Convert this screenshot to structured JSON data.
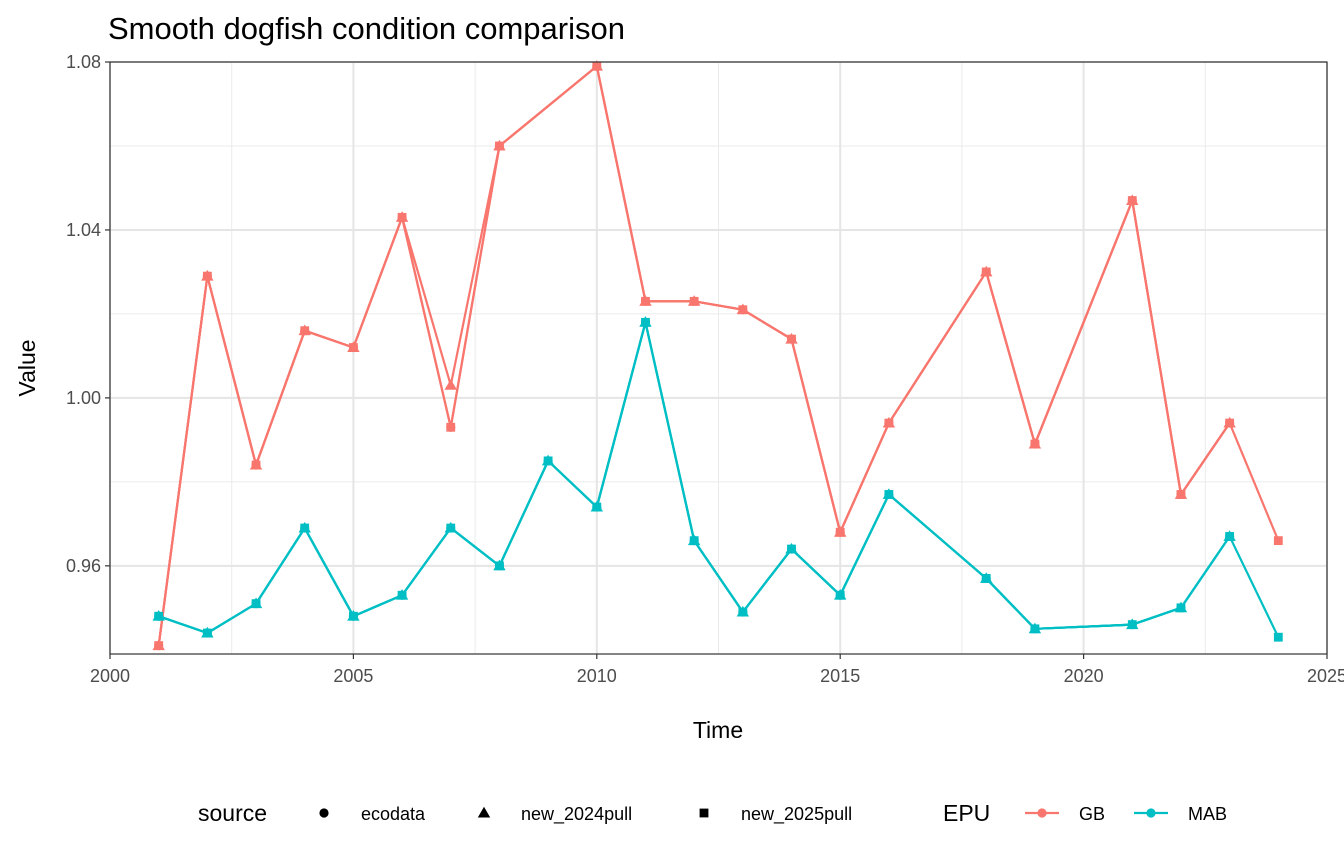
{
  "chart_data": {
    "type": "line",
    "title": "Smooth dogfish condition comparison",
    "xlabel": "Time",
    "ylabel": "Value",
    "xlim": [
      2000,
      2025
    ],
    "ylim": [
      0.939,
      1.08
    ],
    "x_ticks": [
      2000,
      2005,
      2010,
      2015,
      2020,
      2025
    ],
    "x_tick_labels": [
      "2000",
      "2005",
      "2010",
      "2015",
      "2020",
      "2025"
    ],
    "y_ticks": [
      0.96,
      1.0,
      1.04,
      1.08
    ],
    "y_tick_labels": [
      "0.96",
      "1.00",
      "1.04",
      "1.08"
    ],
    "grid": true,
    "legend_position": "bottom",
    "legends": {
      "shape_title": "source",
      "shape_entries": [
        {
          "label": "ecodata",
          "shape": "circle"
        },
        {
          "label": "new_2024pull",
          "shape": "triangle"
        },
        {
          "label": "new_2025pull",
          "shape": "square"
        }
      ],
      "color_title": "EPU",
      "color_entries": [
        {
          "label": "GB",
          "color": "#F8766D"
        },
        {
          "label": "MAB",
          "color": "#00BFC4"
        }
      ]
    },
    "series": [
      {
        "name": "GB",
        "color": "#F8766D",
        "sources": [
          {
            "source": "ecodata",
            "x": [
              2001,
              2002,
              2003,
              2004,
              2005,
              2006,
              2007,
              2008,
              2010,
              2011,
              2012,
              2013,
              2014,
              2015,
              2016,
              2018,
              2019,
              2021,
              2022,
              2023
            ],
            "values": [
              0.941,
              1.029,
              0.984,
              1.016,
              1.012,
              1.043,
              0.993,
              1.06,
              1.079,
              1.023,
              1.023,
              1.021,
              1.014,
              0.968,
              0.994,
              1.03,
              0.989,
              1.047,
              0.977,
              0.994
            ]
          },
          {
            "source": "new_2024pull",
            "x": [
              2001,
              2002,
              2003,
              2004,
              2005,
              2006,
              2007,
              2008,
              2010,
              2011,
              2012,
              2013,
              2014,
              2015,
              2016,
              2018,
              2019,
              2021,
              2022,
              2023
            ],
            "values": [
              0.941,
              1.029,
              0.984,
              1.016,
              1.012,
              1.043,
              1.003,
              1.06,
              1.079,
              1.023,
              1.023,
              1.021,
              1.014,
              0.968,
              0.994,
              1.03,
              0.989,
              1.047,
              0.977,
              0.994
            ]
          },
          {
            "source": "new_2025pull",
            "x": [
              2001,
              2002,
              2003,
              2004,
              2005,
              2006,
              2007,
              2008,
              2010,
              2011,
              2012,
              2013,
              2014,
              2015,
              2016,
              2018,
              2019,
              2021,
              2022,
              2023,
              2024
            ],
            "values": [
              0.941,
              1.029,
              0.984,
              1.016,
              1.012,
              1.043,
              0.993,
              1.06,
              1.079,
              1.023,
              1.023,
              1.021,
              1.014,
              0.968,
              0.994,
              1.03,
              0.989,
              1.047,
              0.977,
              0.994,
              0.966
            ]
          }
        ]
      },
      {
        "name": "MAB",
        "color": "#00BFC4",
        "sources": [
          {
            "source": "ecodata",
            "x": [
              2001,
              2002,
              2003,
              2004,
              2005,
              2006,
              2007,
              2008,
              2009,
              2010,
              2011,
              2012,
              2013,
              2014,
              2015,
              2016,
              2018,
              2019,
              2021,
              2022,
              2023
            ],
            "values": [
              0.948,
              0.944,
              0.951,
              0.969,
              0.948,
              0.953,
              0.969,
              0.96,
              0.985,
              0.974,
              1.018,
              0.966,
              0.949,
              0.964,
              0.953,
              0.977,
              0.957,
              0.945,
              0.946,
              0.95,
              0.967
            ]
          },
          {
            "source": "new_2024pull",
            "x": [
              2001,
              2002,
              2003,
              2004,
              2005,
              2006,
              2007,
              2008,
              2009,
              2010,
              2011,
              2012,
              2013,
              2014,
              2015,
              2016,
              2018,
              2019,
              2021,
              2022,
              2023
            ],
            "values": [
              0.948,
              0.944,
              0.951,
              0.969,
              0.948,
              0.953,
              0.969,
              0.96,
              0.985,
              0.974,
              1.018,
              0.966,
              0.949,
              0.964,
              0.953,
              0.977,
              0.957,
              0.945,
              0.946,
              0.95,
              0.967
            ]
          },
          {
            "source": "new_2025pull",
            "x": [
              2001,
              2002,
              2003,
              2004,
              2005,
              2006,
              2007,
              2008,
              2009,
              2010,
              2011,
              2012,
              2013,
              2014,
              2015,
              2016,
              2018,
              2019,
              2021,
              2022,
              2023,
              2024
            ],
            "values": [
              0.948,
              0.944,
              0.951,
              0.969,
              0.948,
              0.953,
              0.969,
              0.96,
              0.985,
              0.974,
              1.018,
              0.966,
              0.949,
              0.964,
              0.953,
              0.977,
              0.957,
              0.945,
              0.946,
              0.95,
              0.967,
              0.943
            ]
          }
        ]
      }
    ]
  }
}
